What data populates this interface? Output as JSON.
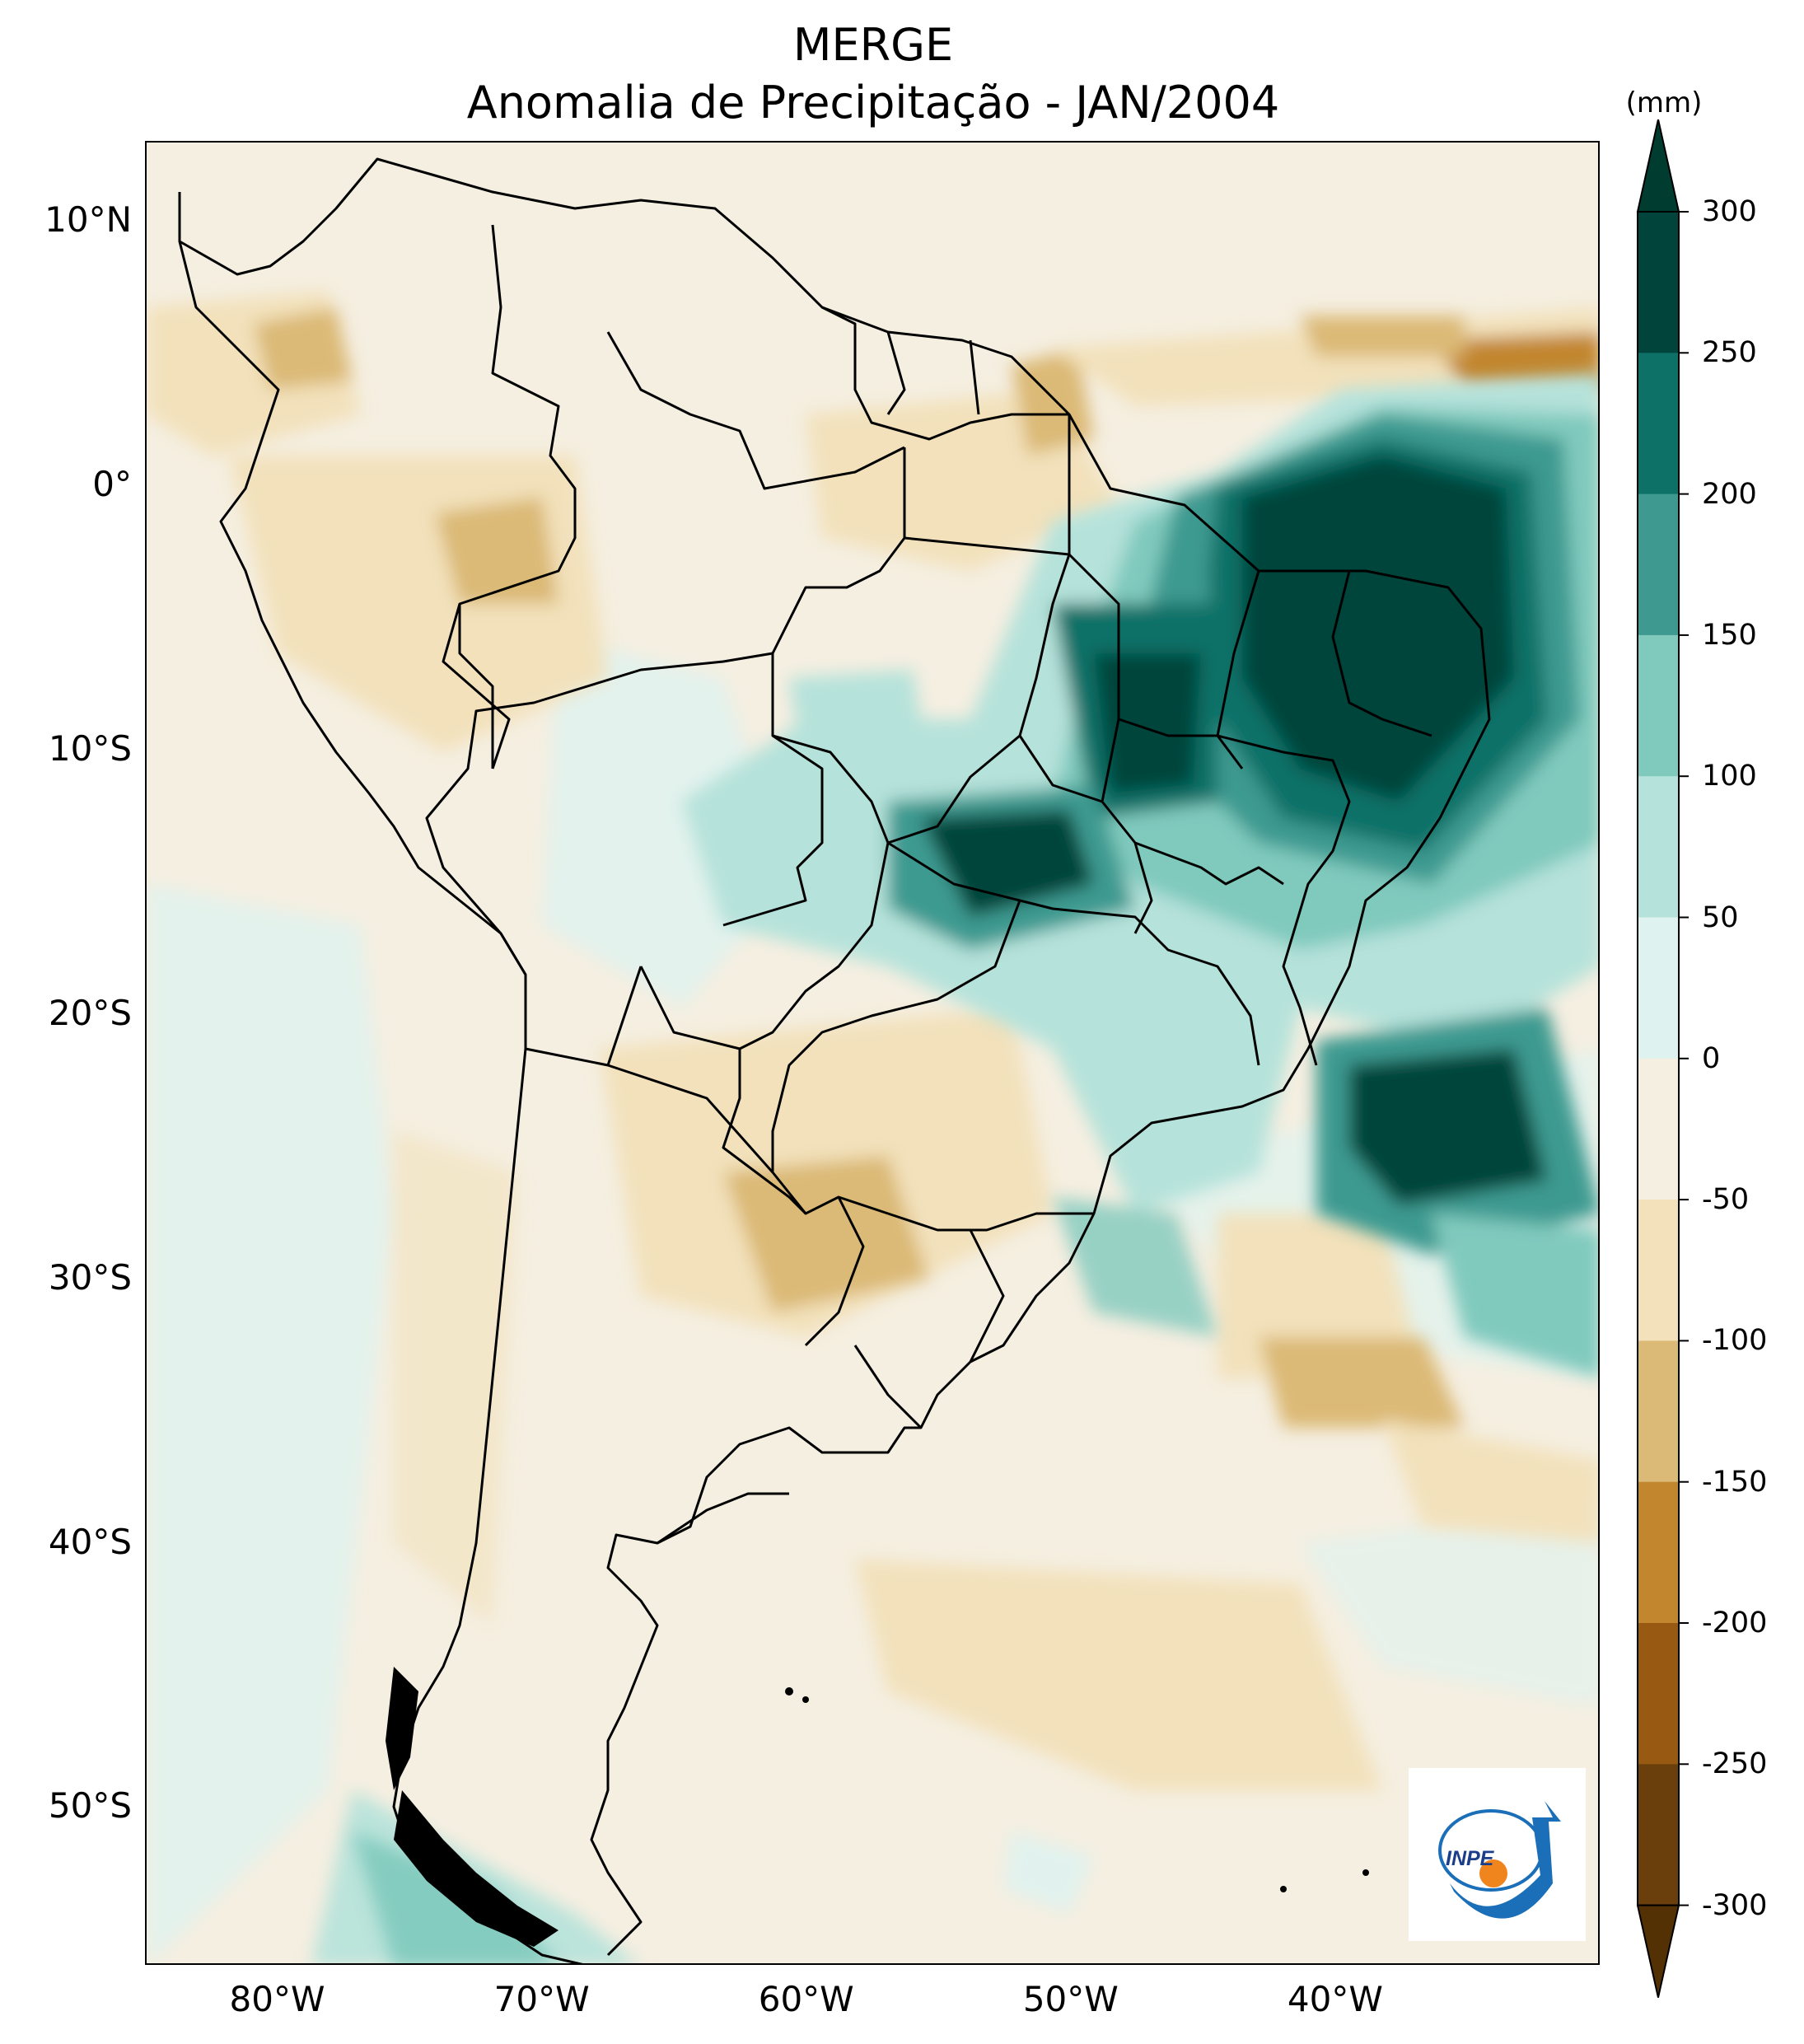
{
  "title": {
    "line1": "MERGE",
    "line2": "Anomalia de Precipitação - JAN/2004"
  },
  "axes": {
    "lat_labels": [
      "10°N",
      "0°",
      "10°S",
      "20°S",
      "30°S",
      "40°S",
      "50°S"
    ],
    "lat_values": [
      10,
      0,
      -10,
      -20,
      -30,
      -40,
      -50
    ],
    "lon_labels": [
      "80°W",
      "70°W",
      "60°W",
      "50°W",
      "40°W"
    ],
    "lon_values": [
      -80,
      -70,
      -60,
      -50,
      -40
    ],
    "lon_range": [
      -85,
      -30
    ],
    "lat_range": [
      -56,
      13
    ]
  },
  "colorbar": {
    "unit": "(mm)",
    "tick_labels": [
      "300",
      "250",
      "200",
      "150",
      "100",
      "50",
      "0",
      "-50",
      "-100",
      "-150",
      "-200",
      "-250",
      "-300"
    ],
    "levels": [
      300,
      250,
      200,
      150,
      100,
      50,
      0,
      -50,
      -100,
      -150,
      -200,
      -250,
      -300
    ],
    "colors_top_to_bottom": [
      "#01443b",
      "#0d7167",
      "#3e9a90",
      "#80c9bd",
      "#b5e2da",
      "#def3ef",
      "#f5efe1",
      "#f2e1bb",
      "#dbb976",
      "#c2862e",
      "#985a12",
      "#6b3f0b"
    ],
    "extend_top_color": "#003c30",
    "extend_bottom_color": "#543005"
  },
  "logo": {
    "text": "INPE",
    "colors": {
      "arrow": "#1a6fb8",
      "dot": "#f0841d"
    }
  },
  "map": {
    "description_colors": {
      "land_base": "#f5efe1",
      "ocean_light": "#e1f2ee",
      "positive_strong": "#01443b",
      "positive_mid": "#3e9a90",
      "positive_light": "#80c9bd",
      "negative_light": "#f2e1bb",
      "negative_mid": "#dbb976",
      "negative_strong": "#c2862e"
    }
  }
}
